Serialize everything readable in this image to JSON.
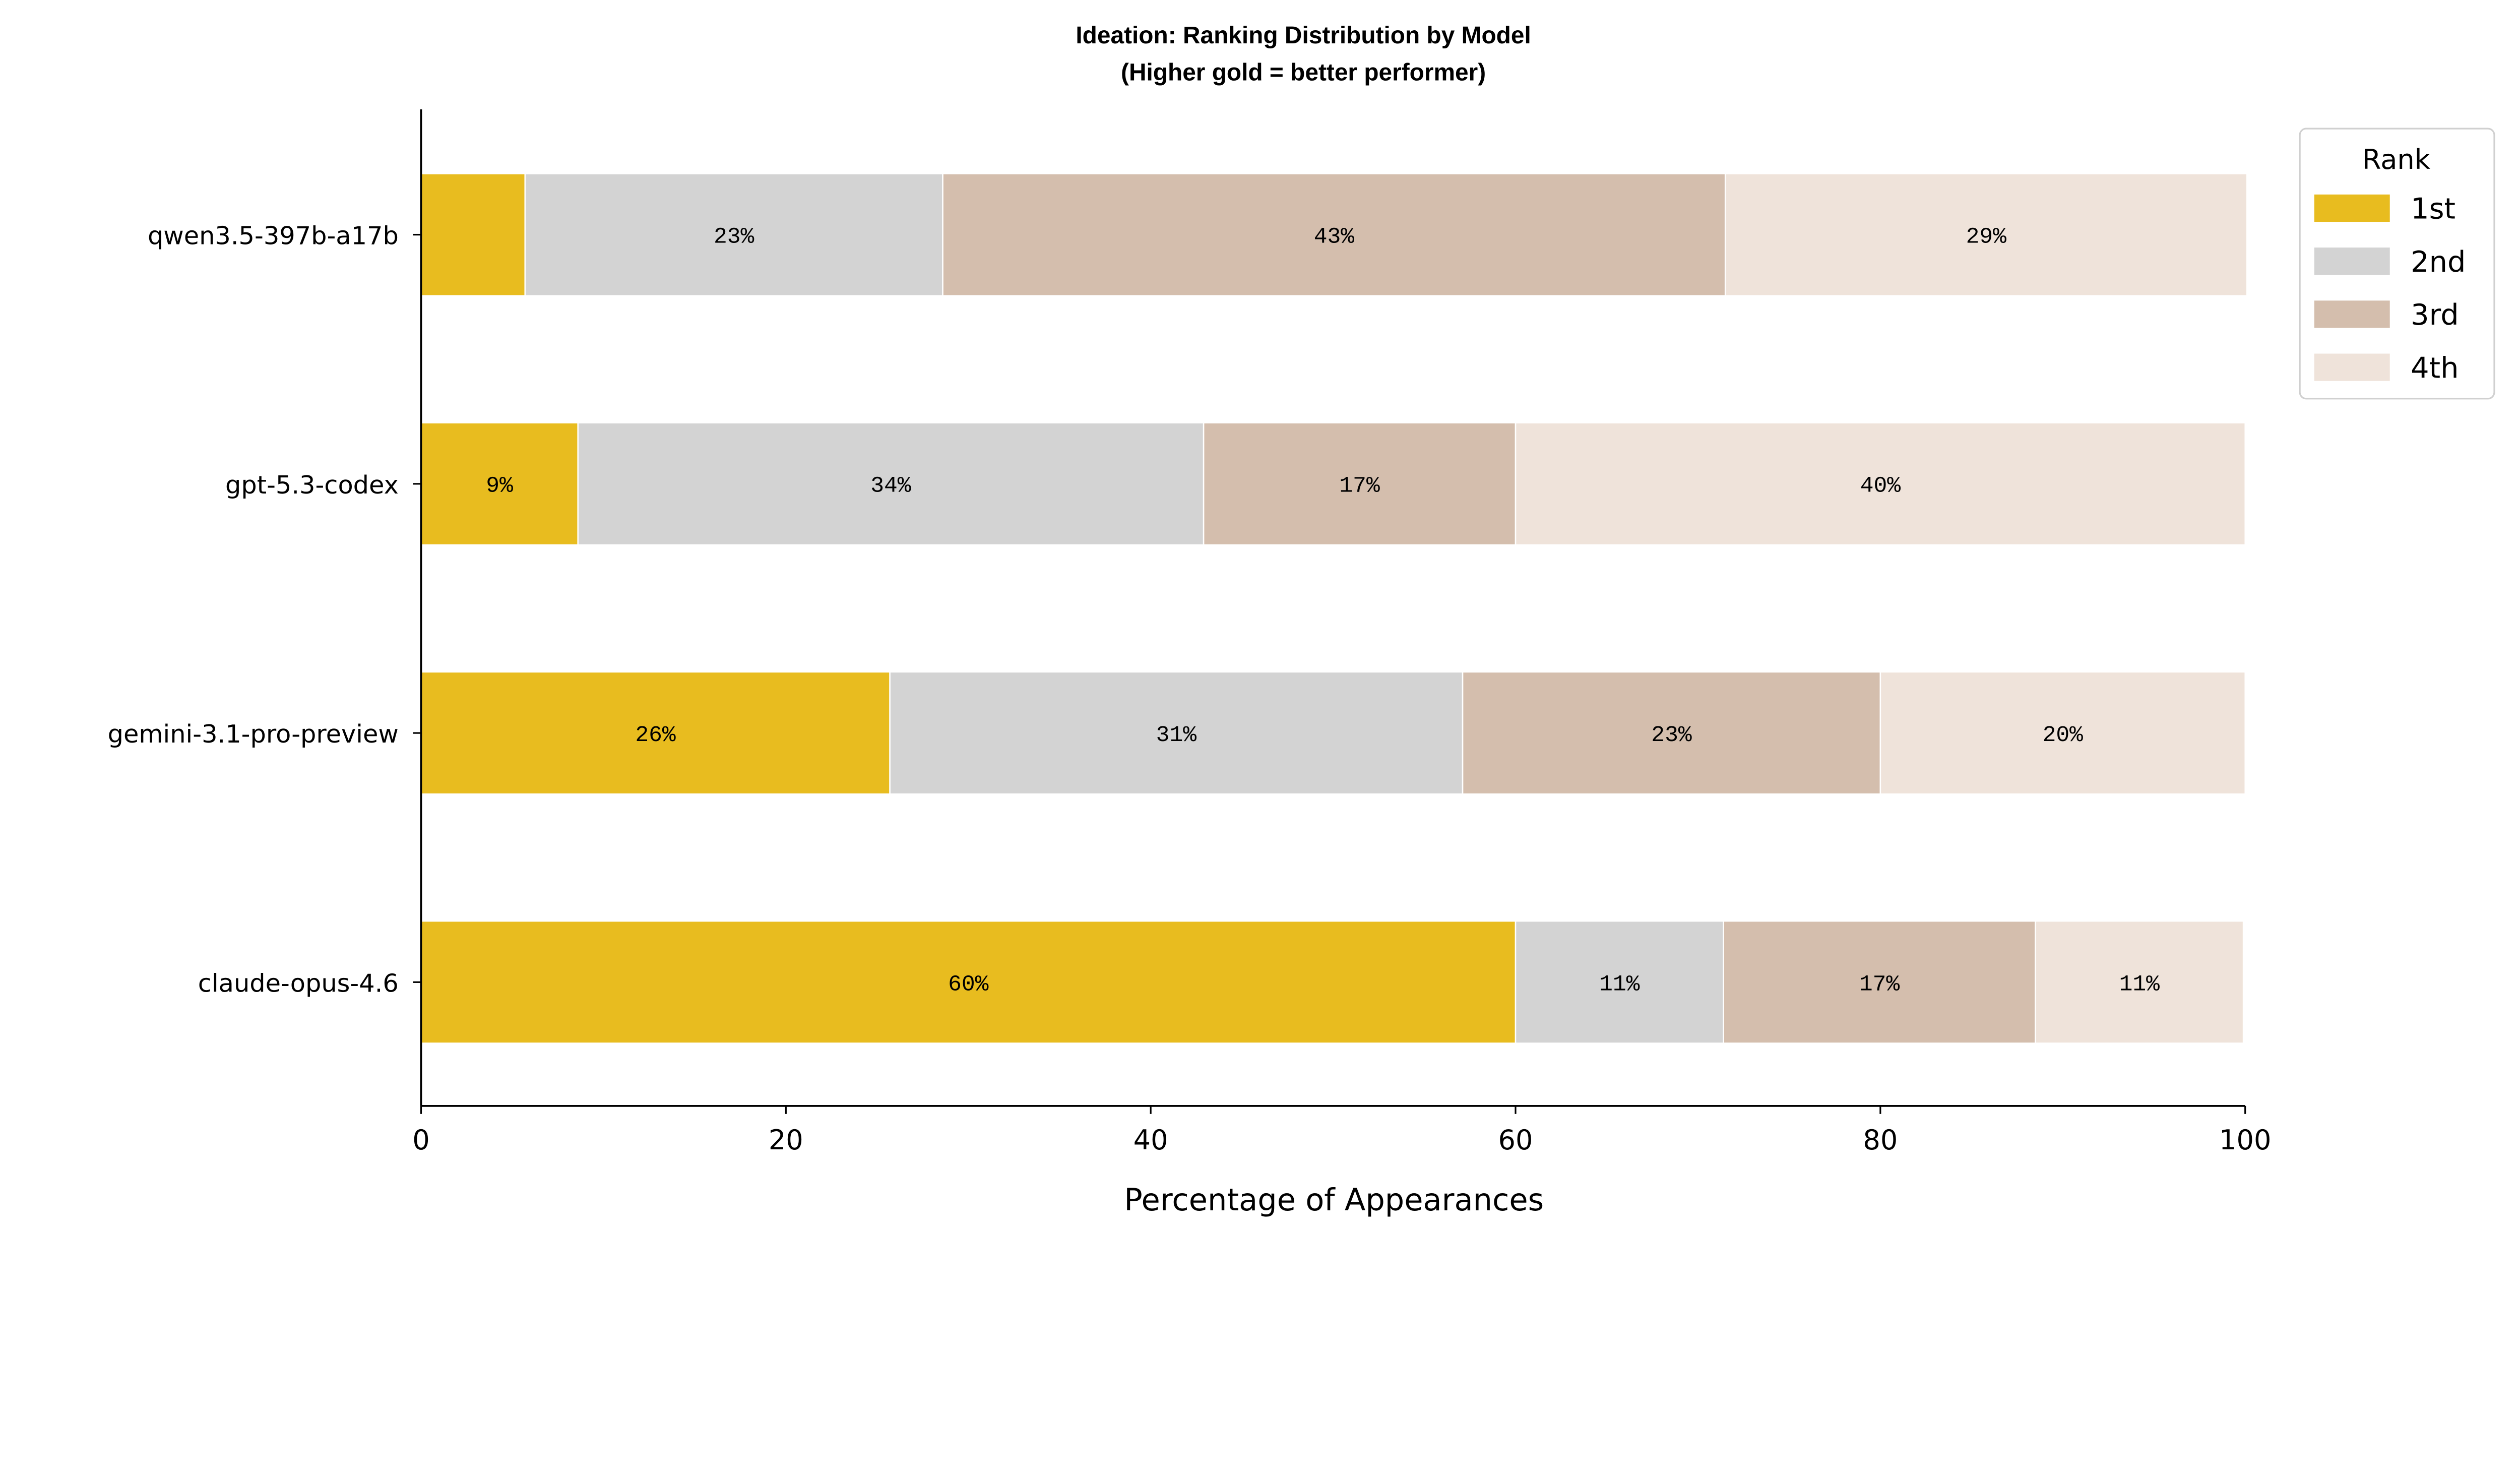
{
  "chart_data": {
    "type": "bar",
    "orientation": "horizontal",
    "stacked": true,
    "title": "Ideation: Ranking Distribution by Model",
    "subtitle": "(Higher gold = better performer)",
    "xlabel": "Percentage of Appearances",
    "ylabel": "",
    "xlim": [
      0,
      100
    ],
    "xticks": [
      0,
      20,
      40,
      60,
      80,
      100
    ],
    "grid": false,
    "categories": [
      "qwen3.5-397b-a17b",
      "gpt-5.3-codex",
      "gemini-3.1-pro-preview",
      "claude-opus-4.6"
    ],
    "series": [
      {
        "name": "1st",
        "color": "#E8BC1F",
        "values": [
          5.7,
          8.6,
          25.7,
          60.0
        ],
        "labels": [
          "",
          "9%",
          "26%",
          "60%"
        ]
      },
      {
        "name": "2nd",
        "color": "#D3D3D3",
        "values": [
          22.9,
          34.3,
          31.4,
          11.4
        ],
        "labels": [
          "23%",
          "34%",
          "31%",
          "11%"
        ]
      },
      {
        "name": "3rd",
        "color": "#D4BEAD",
        "values": [
          42.9,
          17.1,
          22.9,
          17.1
        ],
        "labels": [
          "43%",
          "17%",
          "23%",
          "17%"
        ]
      },
      {
        "name": "4th",
        "color": "#EFE3DA",
        "values": [
          28.6,
          40.0,
          20.0,
          11.4
        ],
        "labels": [
          "29%",
          "40%",
          "20%",
          "11%"
        ]
      }
    ],
    "legend": {
      "title": "Rank",
      "placement": "top-right, outside plot"
    }
  }
}
